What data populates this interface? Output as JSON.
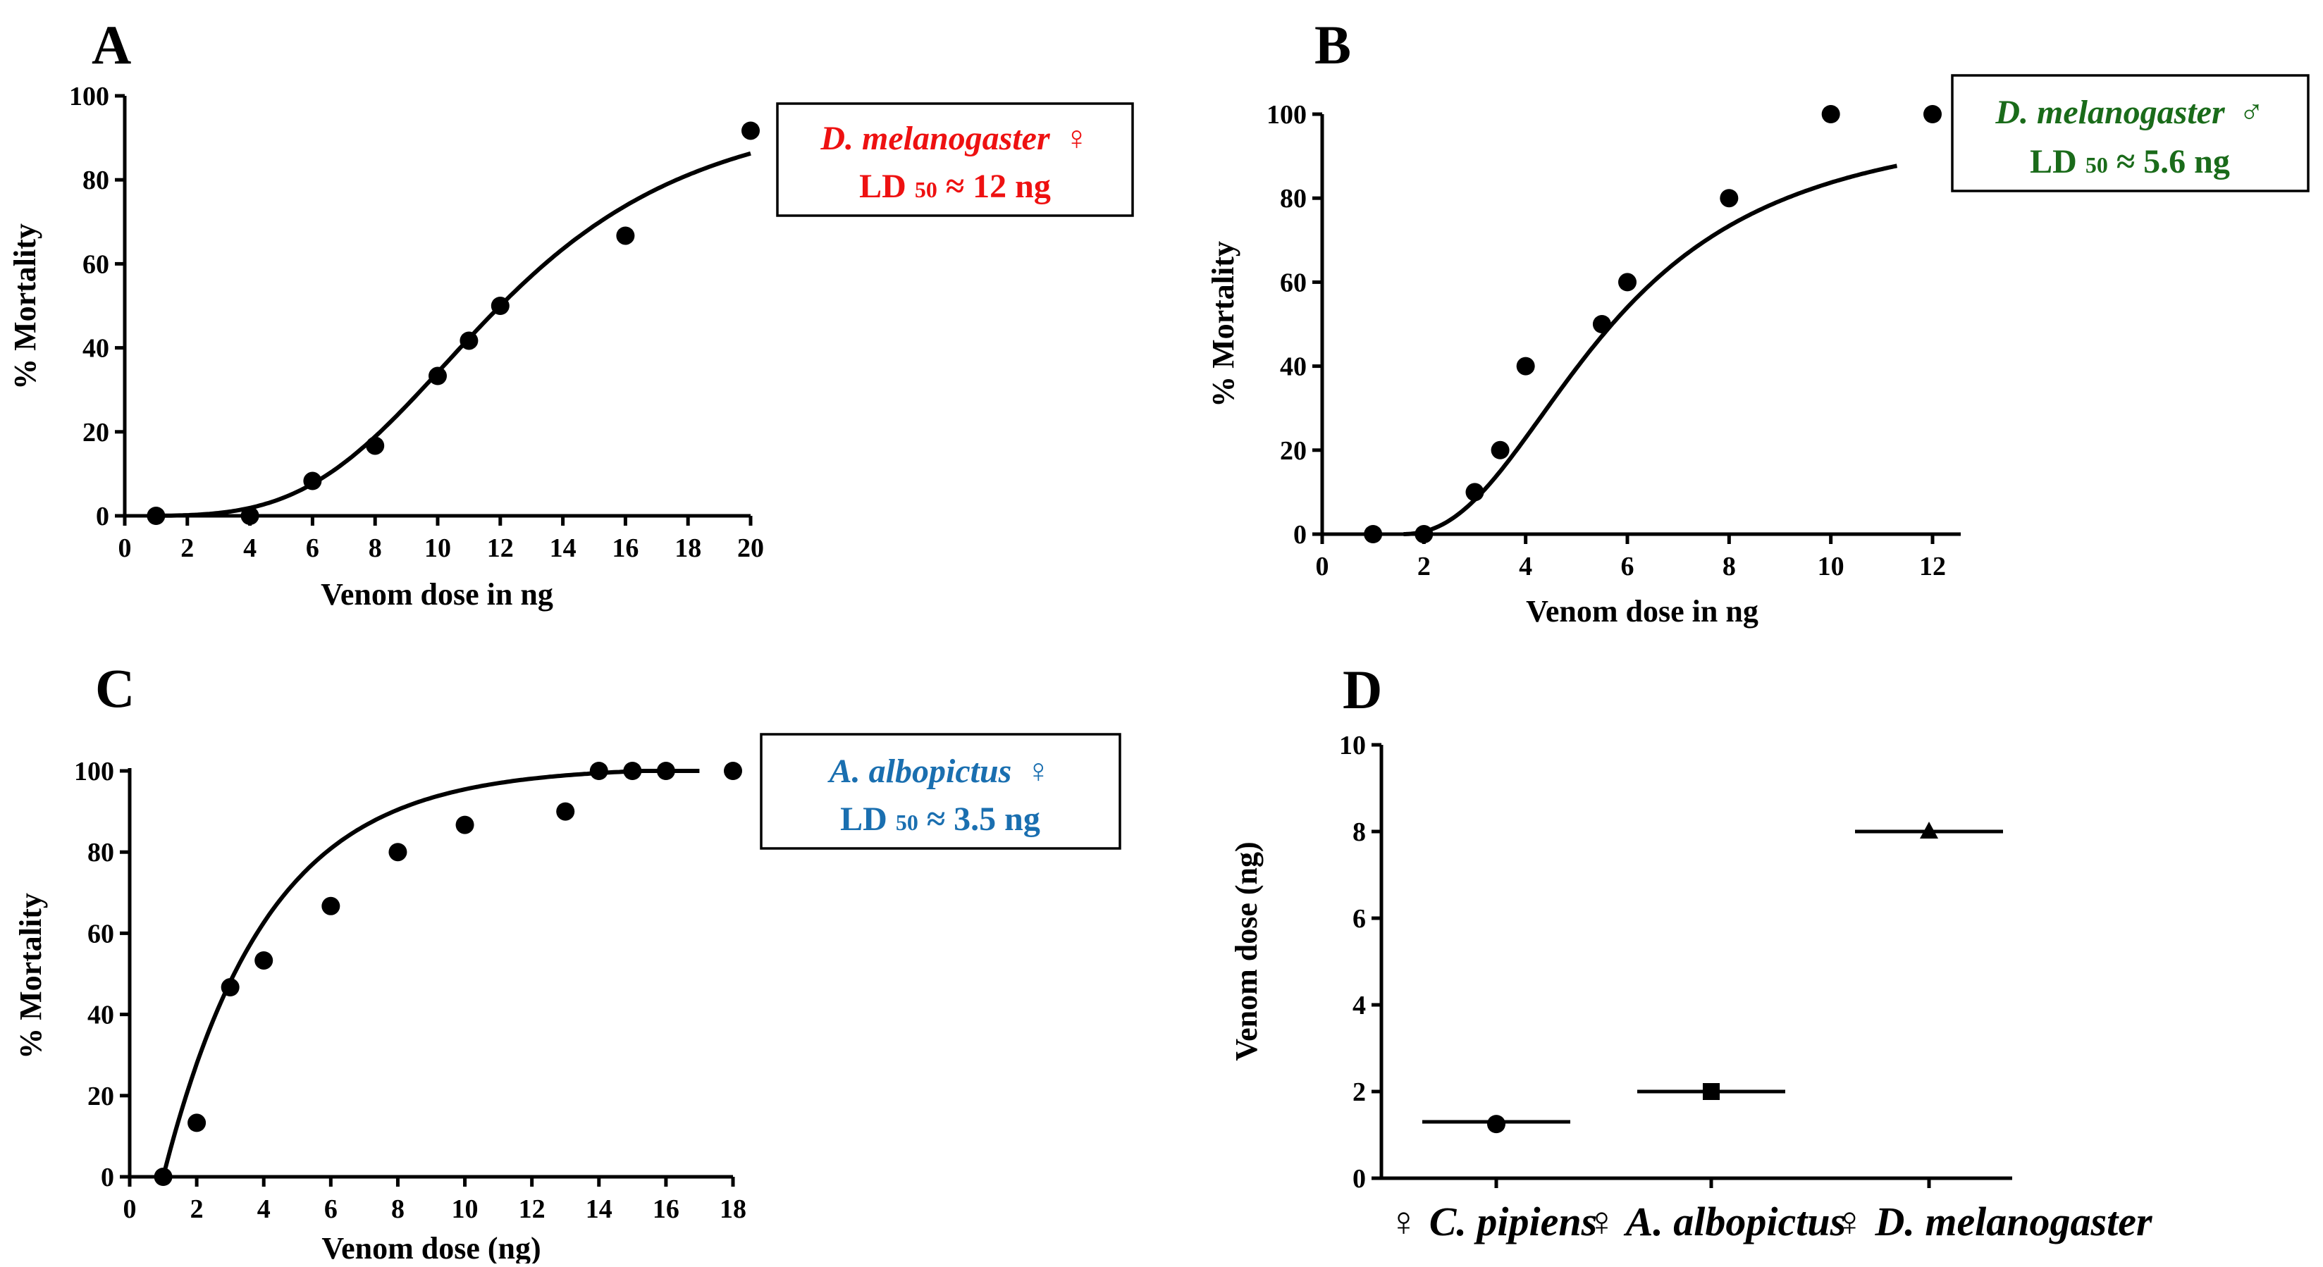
{
  "figure_letters": [
    "A",
    "B",
    "C",
    "D"
  ],
  "chart_data": [
    {
      "id": "A",
      "type": "scatter",
      "xlabel": "Venom dose in ng",
      "ylabel": "% Mortality",
      "xlim": [
        0,
        20
      ],
      "ylim": [
        0,
        100
      ],
      "xticks": [
        0,
        2,
        4,
        6,
        8,
        10,
        12,
        14,
        16,
        18,
        20
      ],
      "yticks": [
        0,
        20,
        40,
        60,
        80,
        100
      ],
      "points": [
        [
          1,
          0
        ],
        [
          4,
          0
        ],
        [
          6,
          8.3
        ],
        [
          8,
          16.7
        ],
        [
          10,
          33.3
        ],
        [
          11,
          41.7
        ],
        [
          12,
          50
        ],
        [
          16,
          66.7
        ],
        [
          20,
          91.7
        ]
      ],
      "fit": {
        "model": "logistic",
        "ld50": 12,
        "hill": 3.6,
        "x_range": [
          1,
          20
        ]
      },
      "legend": {
        "species": "D. melanogaster",
        "sex_symbol": "♀",
        "ld_prefix": "LD",
        "ld_sub": "50",
        "ld_value": " ≈ 12 ng",
        "color": "#ee1111"
      }
    },
    {
      "id": "B",
      "type": "scatter",
      "xlabel": "Venom dose in ng",
      "ylabel": "% Mortality",
      "xlim": [
        0,
        12
      ],
      "ylim": [
        0,
        100
      ],
      "xticks": [
        0,
        2,
        4,
        6,
        8,
        10,
        12
      ],
      "yticks": [
        0,
        20,
        40,
        60,
        80,
        100
      ],
      "points": [
        [
          1,
          0
        ],
        [
          2,
          0
        ],
        [
          3,
          10
        ],
        [
          3.5,
          20
        ],
        [
          4,
          40
        ],
        [
          5.5,
          50
        ],
        [
          6,
          60
        ],
        [
          8,
          80
        ],
        [
          10,
          100
        ],
        [
          12,
          100
        ]
      ],
      "fit": {
        "model": "logistic-shifted",
        "ld50": 5.6,
        "x_range": [
          1.6,
          11.3
        ]
      },
      "legend": {
        "species": "D. melanogaster",
        "sex_symbol": "♂",
        "ld_prefix": "LD",
        "ld_sub": "50",
        "ld_value": " ≈ 5.6 ng",
        "color": "#1a6b1a"
      }
    },
    {
      "id": "C",
      "type": "scatter",
      "xlabel": "Venom dose (ng)",
      "ylabel": "% Mortality",
      "xlim": [
        0,
        18
      ],
      "ylim": [
        0,
        100
      ],
      "xticks": [
        0,
        2,
        4,
        6,
        8,
        10,
        12,
        14,
        16,
        18
      ],
      "yticks": [
        0,
        20,
        40,
        60,
        80,
        100
      ],
      "points": [
        [
          1,
          0
        ],
        [
          2,
          13.3
        ],
        [
          3,
          46.7
        ],
        [
          4,
          53.3
        ],
        [
          6,
          66.7
        ],
        [
          8,
          80
        ],
        [
          10,
          86.7
        ],
        [
          13,
          90
        ],
        [
          14,
          100
        ],
        [
          15,
          100
        ],
        [
          16,
          100
        ],
        [
          18,
          100
        ]
      ],
      "fit": {
        "model": "exponential",
        "ld50": 3.5,
        "x_range": [
          1.05,
          17
        ]
      },
      "legend": {
        "species": "A. albopictus",
        "sex_symbol": "♀",
        "ld_prefix": "LD",
        "ld_sub": "50",
        "ld_value": " ≈ 3.5 ng",
        "color": "#1a6fb0"
      }
    },
    {
      "id": "D",
      "type": "scatter",
      "xlabel": "",
      "ylabel": "Venom dose (ng)",
      "ylim": [
        0,
        10
      ],
      "yticks": [
        0,
        2,
        4,
        6,
        8,
        10
      ],
      "categories": [
        "♀ C. pipiens",
        "♀ A. albopictus",
        "♀ D. melanogaster"
      ],
      "values": [
        1.25,
        2.0,
        8.0
      ],
      "means": [
        1.3,
        2.0,
        8.0
      ],
      "markers": [
        "circle",
        "square",
        "triangle"
      ]
    }
  ]
}
